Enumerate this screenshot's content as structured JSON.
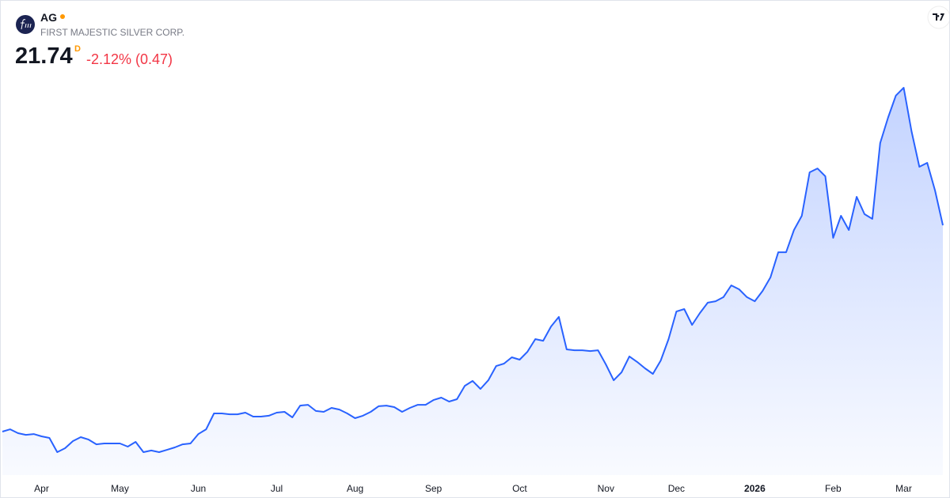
{
  "header": {
    "symbol": "AG",
    "name": "FIRST MAJESTIC SILVER CORP.",
    "price": "21.74",
    "interval": "D",
    "change": "-2.12% (0.47)"
  },
  "chart_data": {
    "type": "area",
    "color": "#2962ff",
    "categories": [
      null,
      null,
      null,
      null,
      null,
      "Apr",
      null,
      null,
      null,
      null,
      null,
      null,
      null,
      null,
      null,
      "May",
      null,
      null,
      null,
      null,
      null,
      null,
      null,
      null,
      null,
      "Jun",
      null,
      null,
      null,
      null,
      null,
      null,
      null,
      null,
      null,
      "Jul",
      null,
      null,
      null,
      null,
      null,
      null,
      null,
      null,
      null,
      "Aug",
      null,
      null,
      null,
      null,
      null,
      null,
      null,
      null,
      null,
      "Sep",
      null,
      null,
      null,
      null,
      null,
      null,
      null,
      null,
      null,
      null,
      "Oct",
      null,
      null,
      null,
      null,
      null,
      null,
      null,
      null,
      null,
      null,
      "Nov",
      null,
      null,
      null,
      null,
      null,
      null,
      null,
      null,
      "Dec",
      null,
      null,
      null,
      null,
      null,
      null,
      null,
      null,
      null,
      "2026",
      null,
      null,
      null,
      null,
      null,
      null,
      null,
      null,
      null,
      "Feb",
      null,
      null,
      null,
      null,
      null,
      null,
      null,
      null,
      "Mar",
      null,
      null,
      null,
      null,
      null
    ],
    "values": [
      6.5,
      6.67,
      6.38,
      6.26,
      6.32,
      6.15,
      6.03,
      4.98,
      5.27,
      5.8,
      6.09,
      5.91,
      5.56,
      5.62,
      5.62,
      5.62,
      5.39,
      5.74,
      4.98,
      5.1,
      4.98,
      5.15,
      5.33,
      5.56,
      5.62,
      6.32,
      6.67,
      7.84,
      7.84,
      7.78,
      7.78,
      7.9,
      7.61,
      7.61,
      7.67,
      7.9,
      7.96,
      7.55,
      8.42,
      8.48,
      8.02,
      7.96,
      8.25,
      8.13,
      7.84,
      7.49,
      7.67,
      7.96,
      8.37,
      8.42,
      8.31,
      7.96,
      8.25,
      8.48,
      8.48,
      8.83,
      9.01,
      8.72,
      8.89,
      9.88,
      10.24,
      9.65,
      10.29,
      11.34,
      11.52,
      11.99,
      11.81,
      12.4,
      13.33,
      13.21,
      14.26,
      14.97,
      12.57,
      12.51,
      12.51,
      12.45,
      12.51,
      11.46,
      10.29,
      10.88,
      12.05,
      11.64,
      11.17,
      10.76,
      11.75,
      13.33,
      15.37,
      15.55,
      14.38,
      15.26,
      16.02,
      16.13,
      16.43,
      17.3,
      17.01,
      16.43,
      16.13,
      16.89,
      17.89,
      19.75,
      19.75,
      21.39,
      22.44,
      25.65,
      25.94,
      25.36,
      20.81,
      22.44,
      21.39,
      23.84,
      22.56,
      22.21,
      27.81,
      29.68,
      31.32,
      31.9,
      28.69,
      26.06,
      26.35,
      24.31,
      21.74
    ]
  }
}
